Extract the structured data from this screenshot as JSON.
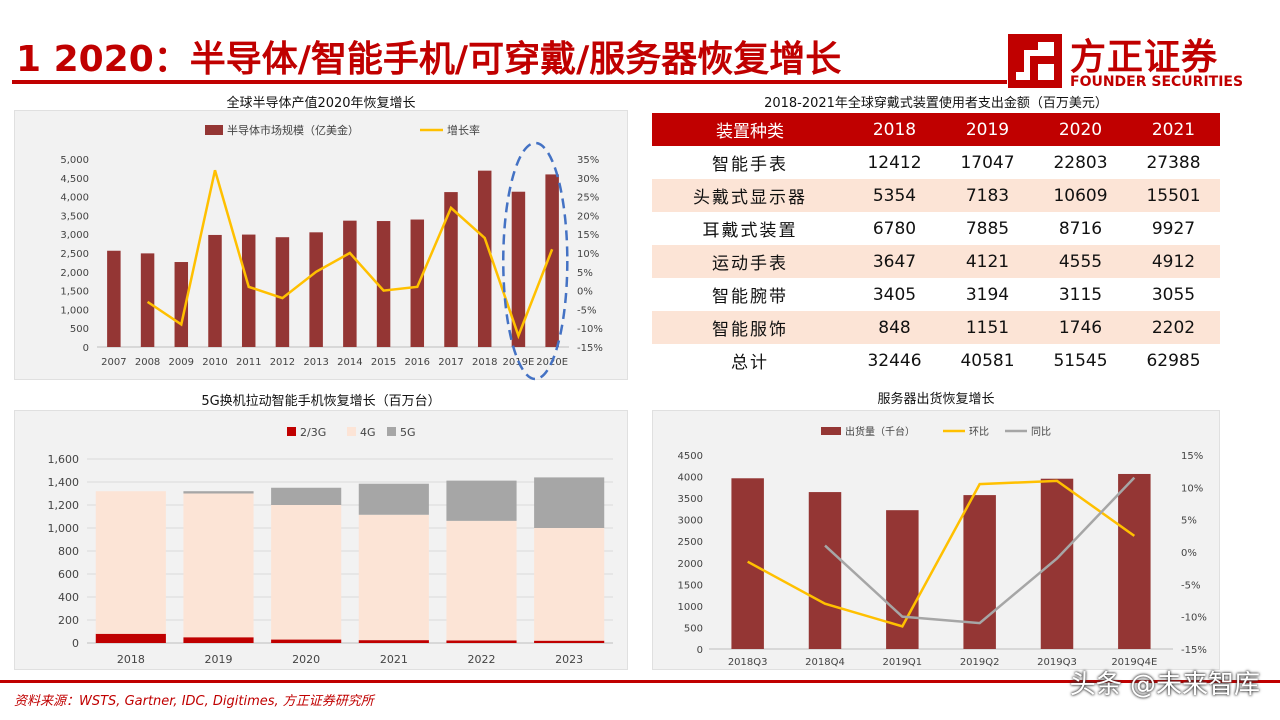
{
  "slide": {
    "title": "1 2020：半导体/智能手机/可穿戴/服务器恢复增长"
  },
  "logo": {
    "cn": "方正证券",
    "en": "FOUNDER SECURITIES"
  },
  "colors": {
    "brand_red": "#c00000",
    "bar_dark_red": "#943634",
    "line_yellow": "#ffc000",
    "line_gray": "#a6a6a6",
    "bar_light": "#fce4d6",
    "bar_gray5g": "#a6a6a6",
    "bar_red2g": "#c00000",
    "circle_blue": "#4472c4"
  },
  "footer": {
    "source": "资料来源：WSTS, Gartner, IDC, Digitimes, 方正证券研究所",
    "watermark": "头条 @未来智库"
  },
  "chart_data": [
    {
      "id": "semiconductor",
      "type": "bar",
      "title": "全球半导体产值2020年恢复增长",
      "categories": [
        "2007",
        "2008",
        "2009",
        "2010",
        "2011",
        "2012",
        "2013",
        "2014",
        "2015",
        "2016",
        "2017",
        "2018",
        "2019E",
        "2020E"
      ],
      "series": [
        {
          "name": "半导体市场规模（亿美金）",
          "type": "bar",
          "axis": "left",
          "values": [
            2560,
            2490,
            2260,
            2980,
            2990,
            2920,
            3050,
            3360,
            3350,
            3390,
            4120,
            4690,
            4130,
            4590
          ]
        },
        {
          "name": "增长率",
          "type": "line",
          "axis": "right",
          "values": [
            null,
            -3,
            -9,
            32,
            1,
            -2,
            5,
            10,
            0,
            1,
            22,
            14,
            -12,
            11
          ]
        }
      ],
      "ylim": [
        0,
        5000
      ],
      "yticks": [
        "0",
        "500",
        "1,000",
        "1,500",
        "2,000",
        "2,500",
        "3,000",
        "3,500",
        "4,000",
        "4,500",
        "5,000"
      ],
      "y2lim": [
        -15,
        35
      ],
      "y2ticks": [
        "-15%",
        "-10%",
        "-5%",
        "0%",
        "5%",
        "10%",
        "15%",
        "20%",
        "25%",
        "30%",
        "35%"
      ],
      "legend": "top",
      "grid": false
    },
    {
      "id": "wearables",
      "type": "table",
      "title": "2018-2021年全球穿戴式装置使用者支出金额（百万美元）",
      "columns": [
        "装置种类",
        "2018",
        "2019",
        "2020",
        "2021"
      ],
      "rows": [
        [
          "智能手表",
          "12412",
          "17047",
          "22803",
          "27388"
        ],
        [
          "头戴式显示器",
          "5354",
          "7183",
          "10609",
          "15501"
        ],
        [
          "耳戴式装置",
          "6780",
          "7885",
          "8716",
          "9927"
        ],
        [
          "运动手表",
          "3647",
          "4121",
          "4555",
          "4912"
        ],
        [
          "智能腕带",
          "3405",
          "3194",
          "3115",
          "3055"
        ],
        [
          "智能服饰",
          "848",
          "1151",
          "1746",
          "2202"
        ],
        [
          "总计",
          "32446",
          "40581",
          "51545",
          "62985"
        ]
      ]
    },
    {
      "id": "smartphones",
      "type": "bar",
      "stacked": true,
      "title": "5G换机拉动智能手机恢复增长（百万台）",
      "categories": [
        "2018",
        "2019",
        "2020",
        "2021",
        "2022",
        "2023"
      ],
      "series": [
        {
          "name": "2/3G",
          "values": [
            80,
            50,
            30,
            25,
            22,
            20
          ]
        },
        {
          "name": "4G",
          "values": [
            1240,
            1250,
            1170,
            1090,
            1040,
            980
          ]
        },
        {
          "name": "5G",
          "values": [
            0,
            20,
            150,
            270,
            350,
            440
          ]
        }
      ],
      "ylim": [
        0,
        1600
      ],
      "yticks": [
        "0",
        "200",
        "400",
        "600",
        "800",
        "1,000",
        "1,200",
        "1,400",
        "1,600"
      ],
      "legend": "top",
      "grid": true
    },
    {
      "id": "servers",
      "type": "bar",
      "title": "服务器出货恢复增长",
      "categories": [
        "2018Q3",
        "2018Q4",
        "2019Q1",
        "2019Q2",
        "2019Q3",
        "2019Q4E"
      ],
      "series": [
        {
          "name": "出货量（千台）",
          "type": "bar",
          "axis": "left",
          "values": [
            3960,
            3640,
            3220,
            3570,
            3950,
            4060
          ]
        },
        {
          "name": "环比",
          "type": "line",
          "axis": "right",
          "values": [
            -1.5,
            -8,
            -11.5,
            10.5,
            11,
            2.5
          ]
        },
        {
          "name": "同比",
          "type": "line",
          "axis": "right",
          "values": [
            null,
            1,
            -10,
            -11,
            -1,
            11.5
          ]
        }
      ],
      "ylim": [
        0,
        4500
      ],
      "yticks": [
        "0",
        "500",
        "1000",
        "1500",
        "2000",
        "2500",
        "3000",
        "3500",
        "4000",
        "4500"
      ],
      "y2lim": [
        -15,
        15
      ],
      "y2ticks": [
        "-15%",
        "-10%",
        "-5%",
        "0%",
        "5%",
        "10%",
        "15%"
      ],
      "legend": "top",
      "grid": false
    }
  ]
}
